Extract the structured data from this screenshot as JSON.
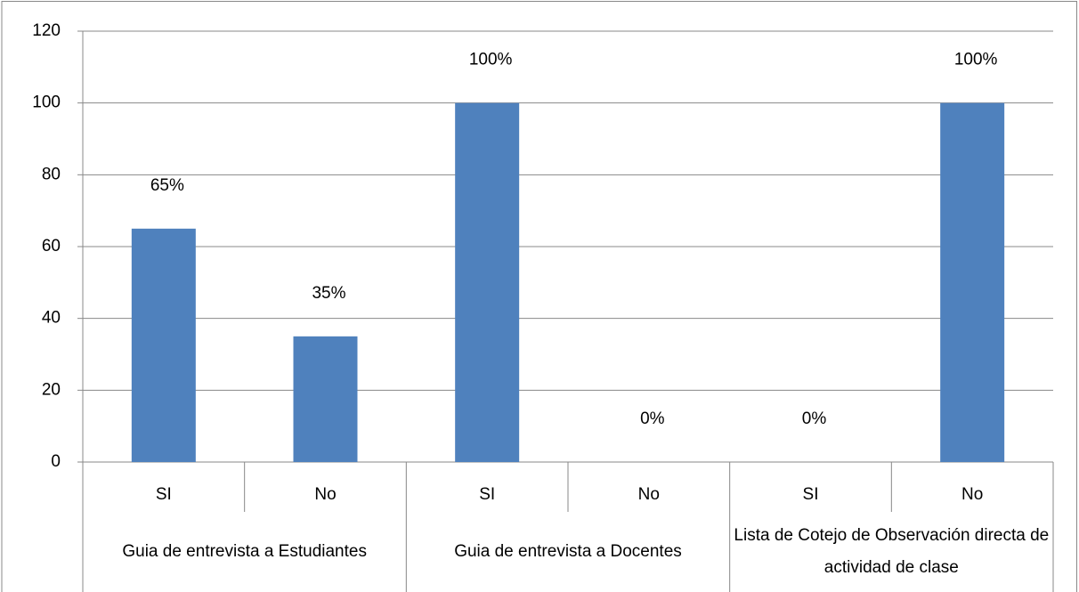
{
  "chart_data": {
    "type": "bar",
    "categories": [
      "SI",
      "No",
      "SI",
      "No",
      "SI",
      "No"
    ],
    "groups": [
      "Guia de entrevista a Estudiantes",
      "Guia de entrevista a Docentes",
      "Lista de Cotejo de Observación directa de actividad de clase"
    ],
    "values": [
      65,
      35,
      100,
      0,
      0,
      100
    ],
    "value_labels": [
      "65%",
      "35%",
      "100%",
      "0%",
      "0%",
      "100%"
    ],
    "color": "#4f81bd",
    "ylim": [
      0,
      120
    ],
    "yticks": [
      0,
      20,
      40,
      60,
      80,
      100,
      120
    ],
    "grid": true
  }
}
